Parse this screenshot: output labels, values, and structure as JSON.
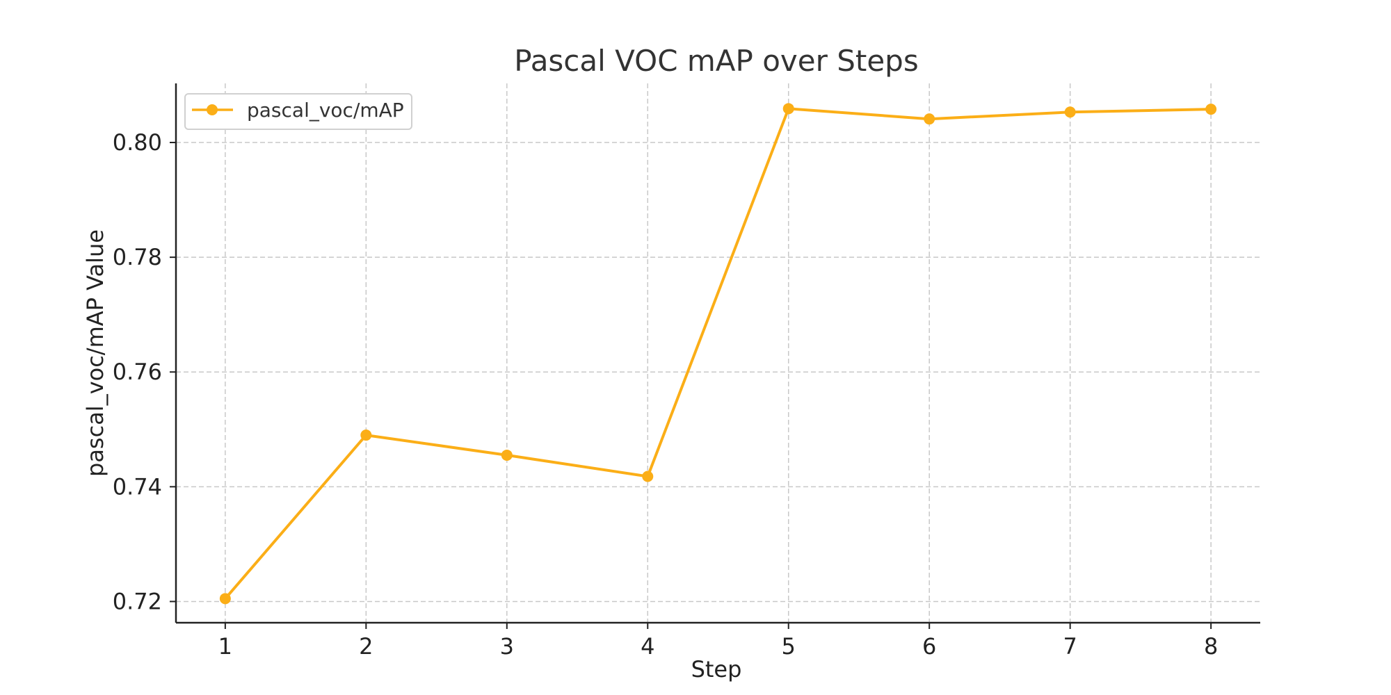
{
  "chart_data": {
    "type": "line",
    "title": "Pascal VOC mAP over Steps",
    "xlabel": "Step",
    "ylabel": "pascal_voc/mAP Value",
    "x": [
      1,
      2,
      3,
      4,
      5,
      6,
      7,
      8
    ],
    "x_ticks": [
      "1",
      "2",
      "3",
      "4",
      "5",
      "6",
      "7",
      "8"
    ],
    "y_ticks": [
      "0.72",
      "0.74",
      "0.76",
      "0.78",
      "0.80"
    ],
    "y_tick_values": [
      0.72,
      0.74,
      0.76,
      0.78,
      0.8
    ],
    "xlim": [
      0.65,
      8.35
    ],
    "ylim": [
      0.7163,
      0.8103
    ],
    "grid": true,
    "legend_position": "top-left",
    "series": [
      {
        "name": "pascal_voc/mAP",
        "color": "#FBAE17",
        "marker": "circle",
        "values": [
          0.7205,
          0.749,
          0.7455,
          0.7418,
          0.8059,
          0.8041,
          0.8053,
          0.8058
        ]
      }
    ]
  }
}
